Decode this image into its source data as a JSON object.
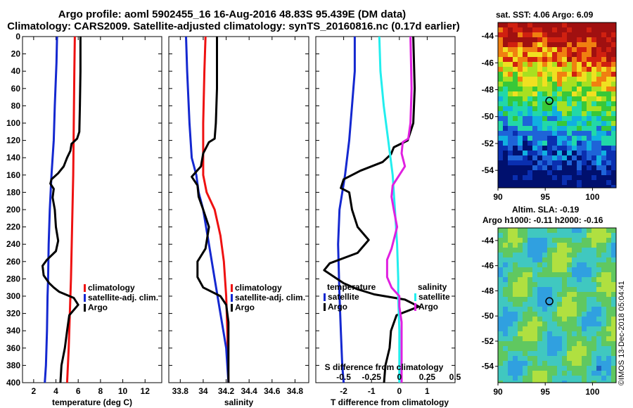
{
  "header": {
    "title1": "Argo profile: aoml 5902455_16 16-Aug-2016 48.83S 95.439E (DM data)",
    "title2": "Climatology: CARS2009. Satellite-adjusted climatology: synTS_20160816.nc (0.17d earlier)"
  },
  "colors": {
    "clim": "#ee1111",
    "sat": "#1428d0",
    "argo": "#000000",
    "sat_s": "#22eeee",
    "argo_s": "#e020e0"
  },
  "chart_data": [
    {
      "type": "line",
      "name": "temperature",
      "xlabel": "temperature (deg C)",
      "xlim": [
        1,
        13.5
      ],
      "xticks": [
        2,
        4,
        6,
        8,
        10,
        12
      ],
      "xticklabels": [
        "2",
        "4",
        "6",
        "8",
        "10",
        "12"
      ],
      "ylim": [
        0,
        400
      ],
      "yticks": [
        0,
        20,
        40,
        60,
        80,
        100,
        120,
        140,
        160,
        180,
        200,
        220,
        240,
        260,
        280,
        300,
        320,
        340,
        360,
        380,
        400
      ],
      "legend": [
        "climatology",
        "satellite-adj. clim.",
        "Argo"
      ],
      "series": [
        {
          "name": "climatology",
          "color": "clim",
          "points": [
            [
              5.7,
              0
            ],
            [
              5.65,
              40
            ],
            [
              5.6,
              100
            ],
            [
              5.55,
              160
            ],
            [
              5.45,
              220
            ],
            [
              5.35,
              280
            ],
            [
              5.25,
              320
            ],
            [
              5.15,
              360
            ],
            [
              5.0,
              400
            ]
          ]
        },
        {
          "name": "satellite-adj. clim.",
          "color": "sat",
          "points": [
            [
              4.1,
              0
            ],
            [
              4.05,
              30
            ],
            [
              3.9,
              80
            ],
            [
              3.8,
              120
            ],
            [
              3.6,
              160
            ],
            [
              3.45,
              200
            ],
            [
              3.35,
              240
            ],
            [
              3.3,
              280
            ],
            [
              3.25,
              300
            ],
            [
              3.2,
              340
            ],
            [
              3.1,
              380
            ],
            [
              3.0,
              400
            ]
          ]
        },
        {
          "name": "Argo",
          "color": "argo",
          "points": [
            [
              6.2,
              0
            ],
            [
              6.2,
              40
            ],
            [
              6.15,
              80
            ],
            [
              6.1,
              110
            ],
            [
              5.9,
              118
            ],
            [
              5.4,
              124
            ],
            [
              5.3,
              132
            ],
            [
              5.0,
              140
            ],
            [
              4.7,
              150
            ],
            [
              4.2,
              158
            ],
            [
              3.6,
              165
            ],
            [
              3.5,
              170
            ],
            [
              3.8,
              176
            ],
            [
              3.7,
              186
            ],
            [
              3.9,
              200
            ],
            [
              4.0,
              220
            ],
            [
              4.2,
              236
            ],
            [
              4.0,
              248
            ],
            [
              3.2,
              258
            ],
            [
              2.8,
              265
            ],
            [
              2.9,
              276
            ],
            [
              3.4,
              285
            ],
            [
              3.8,
              290
            ],
            [
              4.3,
              295
            ],
            [
              5.6,
              302
            ],
            [
              6.0,
              310
            ],
            [
              5.2,
              322
            ],
            [
              5.0,
              340
            ],
            [
              4.8,
              360
            ],
            [
              4.5,
              380
            ],
            [
              4.4,
              400
            ]
          ]
        }
      ]
    },
    {
      "type": "line",
      "name": "salinity",
      "xlabel": "salinity",
      "xlim": [
        33.7,
        34.92
      ],
      "xticks": [
        33.8,
        34,
        34.2,
        34.4,
        34.6,
        34.8
      ],
      "xticklabels": [
        "33.8",
        "34",
        "34.2",
        "34.4",
        "34.6",
        "34.8"
      ],
      "ylim": [
        0,
        400
      ],
      "legend": [
        "climatology",
        "satellite-adj. clim.",
        "Argo"
      ],
      "series": [
        {
          "name": "climatology",
          "color": "clim",
          "points": [
            [
              34.02,
              0
            ],
            [
              34.01,
              40
            ],
            [
              34.0,
              100
            ],
            [
              34.0,
              160
            ],
            [
              34.03,
              180
            ],
            [
              34.1,
              200
            ],
            [
              34.15,
              230
            ],
            [
              34.18,
              260
            ],
            [
              34.2,
              300
            ],
            [
              34.21,
              340
            ],
            [
              34.22,
              400
            ]
          ]
        },
        {
          "name": "satellite-adj. clim.",
          "color": "sat",
          "points": [
            [
              33.85,
              0
            ],
            [
              33.86,
              40
            ],
            [
              33.88,
              100
            ],
            [
              33.9,
              140
            ],
            [
              33.94,
              160
            ],
            [
              33.96,
              180
            ],
            [
              34.0,
              200
            ],
            [
              34.05,
              240
            ],
            [
              34.1,
              280
            ],
            [
              34.15,
              320
            ],
            [
              34.2,
              360
            ],
            [
              34.22,
              400
            ]
          ]
        },
        {
          "name": "Argo",
          "color": "argo",
          "points": [
            [
              34.12,
              0
            ],
            [
              34.12,
              60
            ],
            [
              34.11,
              100
            ],
            [
              34.1,
              118
            ],
            [
              34.05,
              122
            ],
            [
              34.0,
              135
            ],
            [
              33.98,
              150
            ],
            [
              33.9,
              162
            ],
            [
              33.95,
              172
            ],
            [
              33.96,
              185
            ],
            [
              34.0,
              200
            ],
            [
              34.05,
              220
            ],
            [
              34.02,
              245
            ],
            [
              33.95,
              260
            ],
            [
              33.95,
              278
            ],
            [
              34.0,
              290
            ],
            [
              34.15,
              300
            ],
            [
              34.2,
              310
            ],
            [
              34.22,
              330
            ],
            [
              34.22,
              400
            ]
          ]
        }
      ]
    },
    {
      "type": "line",
      "name": "difference",
      "xlabel": "T difference from climatology",
      "xlim": [
        -3,
        2
      ],
      "xticks": [
        -2,
        -1,
        0,
        1
      ],
      "xticklabels": [
        "-2",
        "-1",
        "0",
        "1"
      ],
      "top_xlabel": "S difference from climatology",
      "top_xticks": [
        -0.5,
        -0.25,
        0,
        0.25,
        0.5
      ],
      "top_xticklabels": [
        "-0.5",
        "-0.25",
        "0",
        "0.25",
        "0.5"
      ],
      "ylim": [
        0,
        400
      ],
      "legend_left_title": "temperature",
      "legend_left": [
        "satellite",
        "Argo"
      ],
      "legend_right_title": "salinity",
      "legend_right": [
        "satellite",
        "Argo"
      ],
      "series": [
        {
          "name": "T satellite",
          "color": "sat",
          "points": [
            [
              -1.6,
              0
            ],
            [
              -1.6,
              40
            ],
            [
              -1.7,
              80
            ],
            [
              -1.8,
              120
            ],
            [
              -1.95,
              160
            ],
            [
              -2.15,
              200
            ],
            [
              -2.2,
              240
            ],
            [
              -2.15,
              300
            ],
            [
              -2.1,
              340
            ],
            [
              -2.05,
              380
            ],
            [
              -2.0,
              400
            ]
          ]
        },
        {
          "name": "T Argo",
          "color": "argo",
          "points": [
            [
              0.5,
              0
            ],
            [
              0.55,
              60
            ],
            [
              0.5,
              100
            ],
            [
              0.3,
              120
            ],
            [
              -0.2,
              128
            ],
            [
              -0.3,
              136
            ],
            [
              -0.6,
              145
            ],
            [
              -1.4,
              155
            ],
            [
              -2.0,
              165
            ],
            [
              -2.1,
              175
            ],
            [
              -1.8,
              180
            ],
            [
              -1.7,
              200
            ],
            [
              -1.5,
              220
            ],
            [
              -1.1,
              235
            ],
            [
              -1.5,
              250
            ],
            [
              -2.5,
              262
            ],
            [
              -2.7,
              270
            ],
            [
              -2.0,
              285
            ],
            [
              -1.5,
              292
            ],
            [
              -0.9,
              298
            ],
            [
              0.2,
              304
            ],
            [
              0.7,
              312
            ],
            [
              -0.1,
              322
            ],
            [
              -0.3,
              340
            ],
            [
              -0.35,
              360
            ],
            [
              -0.5,
              380
            ],
            [
              -0.55,
              400
            ]
          ]
        },
        {
          "name": "S satellite",
          "color": "sat_s",
          "points": [
            [
              -0.18,
              0
            ],
            [
              -0.17,
              40
            ],
            [
              -0.14,
              80
            ],
            [
              -0.1,
              120
            ],
            [
              -0.06,
              160
            ],
            [
              -0.04,
              200
            ],
            [
              -0.02,
              240
            ],
            [
              -0.01,
              280
            ],
            [
              -0.01,
              300
            ],
            [
              0.0,
              340
            ],
            [
              0.0,
              400
            ]
          ]
        },
        {
          "name": "S Argo",
          "color": "argo_s",
          "points": [
            [
              0.1,
              0
            ],
            [
              0.11,
              60
            ],
            [
              0.1,
              100
            ],
            [
              0.08,
              118
            ],
            [
              0.03,
              122
            ],
            [
              0.02,
              135
            ],
            [
              0.05,
              150
            ],
            [
              -0.01,
              162
            ],
            [
              -0.06,
              172
            ],
            [
              -0.07,
              185
            ],
            [
              -0.05,
              200
            ],
            [
              -0.02,
              220
            ],
            [
              -0.07,
              245
            ],
            [
              -0.11,
              258
            ],
            [
              -0.11,
              278
            ],
            [
              -0.07,
              290
            ],
            [
              0.0,
              300
            ],
            [
              0.0,
              312
            ],
            [
              0.02,
              330
            ],
            [
              0.02,
              400
            ]
          ]
        }
      ]
    }
  ],
  "maps": {
    "sst_caption": "sat. SST: 4.06  Argo: 6.09",
    "sla_caption1": "Altim. SLA: -0.19",
    "sla_caption2": "Argo h1000: -0.11  h2000: -0.16",
    "yticklabels": [
      "-44",
      "-46",
      "-48",
      "-50",
      "-52",
      "-54"
    ],
    "xticklabels": [
      "90",
      "95",
      "100"
    ],
    "profile_lon": 95.44,
    "profile_lat": -48.83
  },
  "watermark": "©IMOS 13-Dec-2018 05:04:41"
}
